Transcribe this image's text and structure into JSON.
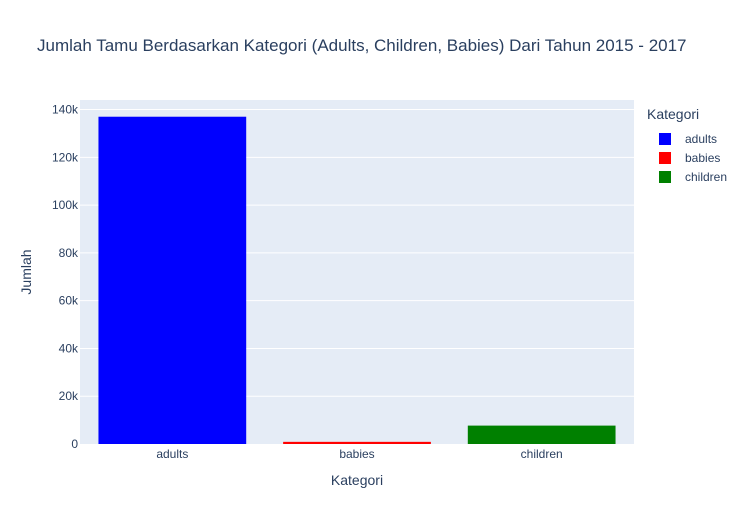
{
  "chart_data": {
    "type": "bar",
    "title": "Jumlah Tamu Berdasarkan Kategori (Adults, Children, Babies) Dari Tahun 2015 - 2017",
    "xlabel": "Kategori",
    "ylabel": "Jumlah",
    "categories": [
      "adults",
      "babies",
      "children"
    ],
    "series": [
      {
        "name": "adults",
        "category": "adults",
        "value": 137000,
        "color": "#0000ff"
      },
      {
        "name": "babies",
        "category": "babies",
        "value": 900,
        "color": "#ff0000"
      },
      {
        "name": "children",
        "category": "children",
        "value": 7700,
        "color": "#008000"
      }
    ],
    "ylim": [
      0,
      144000
    ],
    "yticks": [
      {
        "value": 0,
        "label": "0"
      },
      {
        "value": 20000,
        "label": "20k"
      },
      {
        "value": 40000,
        "label": "40k"
      },
      {
        "value": 60000,
        "label": "60k"
      },
      {
        "value": 80000,
        "label": "80k"
      },
      {
        "value": 100000,
        "label": "100k"
      },
      {
        "value": 120000,
        "label": "120k"
      },
      {
        "value": 140000,
        "label": "140k"
      }
    ],
    "legend": {
      "title": "Kategori",
      "position": "top-right"
    },
    "grid": true,
    "plot_background": "#e5ecf6",
    "text_color": "#2a3f5f"
  }
}
